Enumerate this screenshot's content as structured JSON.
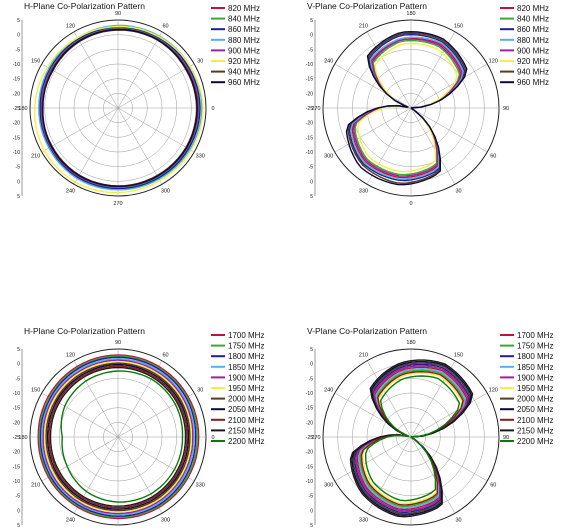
{
  "chart_data": [
    {
      "type": "polar",
      "title": "H-Plane Co-Polarization Pattern",
      "rlim": [
        -25,
        5
      ],
      "r_ticks": [
        "5",
        "0",
        "-5",
        "-10",
        "-15",
        "-20",
        "-25",
        "-20",
        "-15",
        "-10",
        "-5",
        "0",
        "5"
      ],
      "angle_labels": [
        "0",
        "30",
        "60",
        "90",
        "120",
        "150",
        "180",
        "210",
        "240",
        "270",
        "300",
        "330"
      ],
      "angle_unit": "degrees",
      "legend": "right",
      "series": [
        {
          "name": "820 MHz",
          "color": "#c0143c",
          "r": [
            2.5,
            2.4,
            2.3,
            2.0,
            1.6,
            1.2,
            1.4,
            1.7,
            2.1,
            2.0,
            2.2,
            2.4
          ]
        },
        {
          "name": "840 MHz",
          "color": "#38a832",
          "r": [
            2.8,
            2.6,
            2.5,
            2.4,
            2.0,
            1.6,
            1.4,
            1.8,
            2.3,
            2.2,
            2.4,
            2.6
          ]
        },
        {
          "name": "860 MHz",
          "color": "#1e1e9c",
          "r": [
            3.0,
            2.8,
            2.7,
            2.6,
            2.2,
            1.8,
            1.6,
            2.0,
            2.4,
            2.5,
            2.6,
            2.8
          ]
        },
        {
          "name": "880 MHz",
          "color": "#5aaee6",
          "r": [
            3.6,
            3.4,
            3.3,
            3.2,
            2.6,
            2.2,
            2.0,
            2.2,
            2.8,
            2.9,
            3.0,
            3.3
          ]
        },
        {
          "name": "900 MHz",
          "color": "#a020a0",
          "r": [
            2.2,
            2.0,
            2.0,
            1.9,
            1.5,
            1.0,
            1.0,
            1.4,
            1.8,
            1.8,
            1.9,
            2.1
          ]
        },
        {
          "name": "920 MHz",
          "color": "#f2f044",
          "r": [
            4.0,
            3.4,
            3.0,
            2.8,
            2.6,
            2.8,
            3.4,
            4.0,
            4.2,
            3.8,
            3.6,
            3.8
          ]
        },
        {
          "name": "940 MHz",
          "color": "#5a3a18",
          "r": [
            1.8,
            1.6,
            1.8,
            1.6,
            1.2,
            0.6,
            0.8,
            1.0,
            1.4,
            1.6,
            1.6,
            1.8
          ]
        },
        {
          "name": "960 MHz",
          "color": "#0a0a40",
          "r": [
            2.0,
            1.8,
            1.9,
            1.8,
            1.4,
            0.8,
            0.6,
            1.2,
            1.6,
            1.7,
            1.8,
            2.0
          ]
        }
      ]
    },
    {
      "type": "polar",
      "title": "V-Plane Co-Polarization Pattern",
      "rlim": [
        -25,
        5
      ],
      "r_ticks": [
        "5",
        "0",
        "-5",
        "-10",
        "-15",
        "-20",
        "-25",
        "-20",
        "-15",
        "-10",
        "-5",
        "0",
        "5"
      ],
      "angle_labels": [
        "90",
        "120",
        "150",
        "180",
        "210",
        "240",
        "270",
        "300",
        "330",
        "0",
        "30",
        "60"
      ],
      "angle_unit": "degrees",
      "legend": "right",
      "series": [
        {
          "name": "820 MHz",
          "color": "#c0143c",
          "r": [
            -25,
            -4,
            -1,
            -1.5,
            -4,
            -25,
            -4,
            -1,
            -1,
            -3,
            -25
          ]
        },
        {
          "name": "840 MHz",
          "color": "#38a832",
          "r": [
            -25,
            -5,
            -2,
            -2,
            -5,
            -25,
            -5,
            -2,
            -2,
            -4,
            -25
          ]
        },
        {
          "name": "860 MHz",
          "color": "#1e1e9c",
          "r": [
            -25,
            -3,
            0,
            0,
            -3,
            -25,
            -3,
            0,
            0,
            -2,
            -25
          ]
        },
        {
          "name": "880 MHz",
          "color": "#5aaee6",
          "r": [
            -25,
            -3.5,
            -0.5,
            -1,
            -3.5,
            -25,
            -3.5,
            -0.5,
            -0.5,
            -2.5,
            -25
          ]
        },
        {
          "name": "900 MHz",
          "color": "#a020a0",
          "r": [
            -25,
            -4.5,
            -1.5,
            -1.5,
            -4.5,
            -25,
            -4.5,
            -1.5,
            -1.5,
            -3.5,
            -25
          ]
        },
        {
          "name": "920 MHz",
          "color": "#f2f044",
          "r": [
            -25,
            -6,
            -3,
            -3,
            -6,
            -25,
            -6,
            -3,
            -3,
            -5,
            -25
          ]
        },
        {
          "name": "940 MHz",
          "color": "#5a3a18",
          "r": [
            -25,
            -2.5,
            0.5,
            0.5,
            -2.5,
            -25,
            -2.5,
            0.5,
            1,
            -1.5,
            -25
          ]
        },
        {
          "name": "960 MHz",
          "color": "#0a0a40",
          "r": [
            -25,
            -2,
            1,
            1,
            -2,
            -25,
            -2,
            1.5,
            1.5,
            -1,
            -25
          ]
        }
      ]
    },
    {
      "type": "polar",
      "title": "H-Plane Co-Polarization Pattern",
      "rlim": [
        -25,
        5
      ],
      "r_ticks": [
        "5",
        "0",
        "-5",
        "-10",
        "-15",
        "-20",
        "-25",
        "-20",
        "-15",
        "-10",
        "-5",
        "0",
        "5"
      ],
      "angle_labels": [
        "0",
        "30",
        "60",
        "90",
        "120",
        "150",
        "180",
        "210",
        "240",
        "270",
        "300",
        "330"
      ],
      "angle_unit": "degrees",
      "legend": "right",
      "series": [
        {
          "name": "1700 MHz",
          "color": "#c0143c",
          "r": [
            2.5,
            2.6,
            2.8,
            3.0,
            2.8,
            2.5,
            2.2,
            2.4,
            2.6,
            2.8,
            2.8,
            2.6
          ]
        },
        {
          "name": "1750 MHz",
          "color": "#38a832",
          "r": [
            2.0,
            2.2,
            2.4,
            2.6,
            2.4,
            2.0,
            1.8,
            2.0,
            2.2,
            2.4,
            2.4,
            2.2
          ]
        },
        {
          "name": "1800 MHz",
          "color": "#1e1e9c",
          "r": [
            1.5,
            1.8,
            2.0,
            2.2,
            2.0,
            1.6,
            1.4,
            1.6,
            1.8,
            2.0,
            2.0,
            1.7
          ]
        },
        {
          "name": "1850 MHz",
          "color": "#5aaee6",
          "r": [
            1.0,
            1.2,
            1.5,
            1.7,
            1.5,
            1.2,
            1.0,
            1.2,
            1.4,
            1.5,
            1.5,
            1.2
          ]
        },
        {
          "name": "1900 MHz",
          "color": "#a020a0",
          "r": [
            0.5,
            0.8,
            1.0,
            1.2,
            1.0,
            0.8,
            0.5,
            0.8,
            1.0,
            1.1,
            1.0,
            0.7
          ]
        },
        {
          "name": "1950 MHz",
          "color": "#f2f044",
          "r": [
            0,
            0.2,
            0.5,
            0.7,
            0.5,
            0.2,
            0,
            0.2,
            0.4,
            0.5,
            0.5,
            0.2
          ]
        },
        {
          "name": "2000 MHz",
          "color": "#5a3a18",
          "r": [
            -0.5,
            -0.2,
            0,
            0.2,
            0,
            -0.3,
            -0.5,
            -0.3,
            0,
            0.1,
            0,
            -0.3
          ]
        },
        {
          "name": "2050 MHz",
          "color": "#0a0a40",
          "r": [
            -1,
            -0.7,
            -0.5,
            -0.3,
            -0.5,
            -0.8,
            -1,
            -0.8,
            -0.5,
            -0.4,
            -0.5,
            -0.8
          ]
        },
        {
          "name": "2100 MHz",
          "color": "#8b1a1a",
          "r": [
            -1.5,
            -1.2,
            -1.0,
            -0.8,
            -1.0,
            -1.3,
            -1.5,
            -1.3,
            -1.0,
            -0.9,
            -1.0,
            -1.3
          ]
        },
        {
          "name": "2150 MHz",
          "color": "#1a1a1a",
          "r": [
            -2,
            -1.7,
            -1.5,
            -1.3,
            -1.5,
            -1.8,
            -2,
            -1.8,
            -1.5,
            -1.4,
            -1.5,
            -1.8
          ]
        },
        {
          "name": "2200 MHz",
          "color": "#0a7a0a",
          "r": [
            -3,
            -2.5,
            -2.2,
            -2.5,
            -3.0,
            -4.0,
            -6.0,
            -5.0,
            -3.5,
            -2.8,
            -2.6,
            -2.8
          ]
        }
      ]
    },
    {
      "type": "polar",
      "title": "V-Plane Co-Polarization Pattern",
      "rlim": [
        -25,
        5
      ],
      "r_ticks": [
        "5",
        "0",
        "-5",
        "-10",
        "-15",
        "-20",
        "-25",
        "-20",
        "-15",
        "-10",
        "-5",
        "0",
        "5"
      ],
      "angle_labels": [
        "90",
        "120",
        "150",
        "180",
        "210",
        "240",
        "270",
        "300",
        "330",
        "0",
        "30",
        "60"
      ],
      "angle_unit": "degrees",
      "legend": "right",
      "series": [
        {
          "name": "1700 MHz",
          "color": "#c0143c",
          "r": [
            -25,
            -2,
            0,
            -2,
            -6,
            -25,
            -6,
            -2,
            0,
            -2,
            -25
          ]
        },
        {
          "name": "1750 MHz",
          "color": "#38a832",
          "r": [
            -25,
            -3,
            -1,
            -3,
            -7,
            -25,
            -7,
            -3,
            -1,
            -3,
            -25
          ]
        },
        {
          "name": "1800 MHz",
          "color": "#1e1e9c",
          "r": [
            -25,
            -1,
            1,
            -1,
            -5,
            -25,
            -5,
            -1,
            1,
            -1,
            -25
          ]
        },
        {
          "name": "1850 MHz",
          "color": "#5aaee6",
          "r": [
            -25,
            -2.5,
            -0.5,
            -2.5,
            -6.5,
            -25,
            -6.5,
            -2.5,
            -0.5,
            -2.5,
            -25
          ]
        },
        {
          "name": "1900 MHz",
          "color": "#a020a0",
          "r": [
            -25,
            -1.5,
            0.5,
            -1.5,
            -5.5,
            -25,
            -5.5,
            -1.5,
            0.5,
            -1.5,
            -25
          ]
        },
        {
          "name": "1950 MHz",
          "color": "#f2f044",
          "r": [
            -25,
            -4,
            -2,
            -4,
            -8,
            -25,
            -8,
            -4,
            -2,
            -4,
            -25
          ]
        },
        {
          "name": "2000 MHz",
          "color": "#5a3a18",
          "r": [
            -25,
            -0.5,
            1.5,
            -0.5,
            -4.5,
            -25,
            -4.5,
            -0.5,
            1.5,
            -0.5,
            -25
          ]
        },
        {
          "name": "2050 MHz",
          "color": "#0a0a40",
          "r": [
            -25,
            0,
            2,
            0,
            -4,
            -25,
            -4,
            0,
            2,
            0,
            -25
          ]
        },
        {
          "name": "2100 MHz",
          "color": "#8b1a1a",
          "r": [
            -25,
            -3.5,
            -1.5,
            -3.5,
            -7.5,
            -25,
            -7.5,
            -3.5,
            -1.5,
            -3.5,
            -25
          ]
        },
        {
          "name": "2150 MHz",
          "color": "#1a1a1a",
          "r": [
            -25,
            0.5,
            2.5,
            0.5,
            -3.5,
            -25,
            -3.5,
            0.5,
            2.5,
            0.5,
            -25
          ]
        },
        {
          "name": "2200 MHz",
          "color": "#0a7a0a",
          "r": [
            -25,
            -5,
            -3,
            -5,
            -9,
            -25,
            -9,
            -5,
            -3,
            -5,
            -25
          ]
        }
      ]
    }
  ]
}
